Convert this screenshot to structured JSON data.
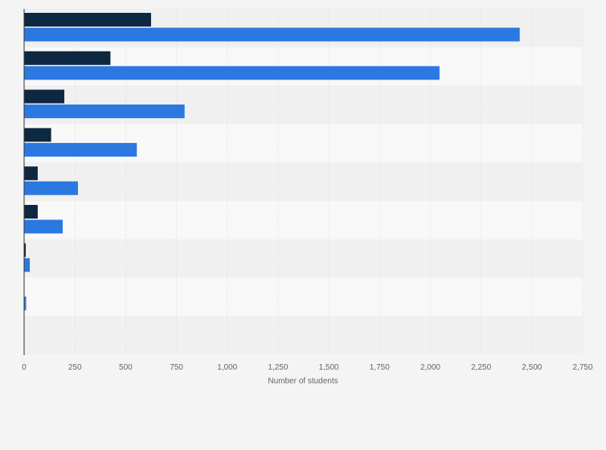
{
  "chart_data": {
    "type": "bar",
    "orientation": "horizontal",
    "title": "",
    "xlabel": "Number of students",
    "ylabel": "",
    "xlim": [
      0,
      2750
    ],
    "x_ticks": [
      0,
      250,
      500,
      750,
      1000,
      1250,
      1500,
      1750,
      2000,
      2250,
      2500,
      2750
    ],
    "x_tick_labels": [
      "0",
      "250",
      "500",
      "750",
      "1,000",
      "1,250",
      "1,500",
      "1,750",
      "2,000",
      "2,250",
      "2,500",
      "2,750"
    ],
    "categories": [
      "",
      "",
      "",
      "",
      "",
      "",
      "",
      "",
      ""
    ],
    "series": [
      {
        "color": "#0d2841",
        "values": [
          625,
          425,
          198,
          133,
          67,
          67,
          8,
          0,
          0
        ]
      },
      {
        "color": "#2a78e0",
        "values": [
          2440,
          2045,
          790,
          555,
          265,
          190,
          28,
          10,
          0
        ]
      }
    ],
    "grid": true,
    "legend": "none"
  }
}
